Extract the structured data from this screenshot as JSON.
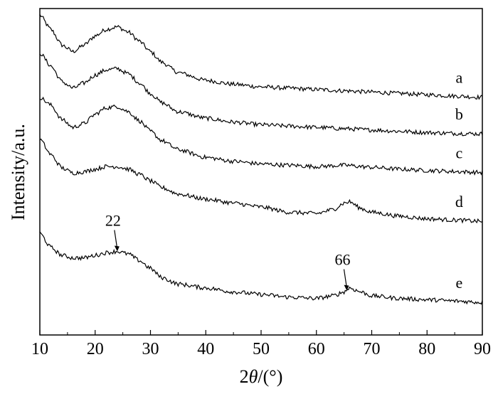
{
  "chart_data": {
    "type": "line",
    "title": "",
    "xlabel": {
      "prefix": "2",
      "symbol": "θ",
      "suffix": "/(°)"
    },
    "ylabel": "Intensity/a.u.",
    "xlim": [
      10,
      90
    ],
    "xticks": [
      10,
      20,
      30,
      40,
      50,
      60,
      70,
      80,
      90
    ],
    "yticks": [],
    "grid": false,
    "legend": "none",
    "line_color": "#000000",
    "series": [
      {
        "name": "a",
        "points": [
          [
            10,
            7.75
          ],
          [
            12,
            7.2
          ],
          [
            14,
            6.6
          ],
          [
            16,
            6.35
          ],
          [
            18,
            6.6
          ],
          [
            20,
            6.95
          ],
          [
            22,
            7.2
          ],
          [
            24,
            7.3
          ],
          [
            26,
            7.1
          ],
          [
            28,
            6.75
          ],
          [
            30,
            6.35
          ],
          [
            32,
            5.95
          ],
          [
            35,
            5.55
          ],
          [
            40,
            5.25
          ],
          [
            45,
            5.1
          ],
          [
            50,
            5.0
          ],
          [
            55,
            4.95
          ],
          [
            60,
            4.9
          ],
          [
            65,
            4.85
          ],
          [
            70,
            4.8
          ],
          [
            75,
            4.75
          ],
          [
            80,
            4.7
          ],
          [
            85,
            4.65
          ],
          [
            90,
            4.6
          ]
        ]
      },
      {
        "name": "b",
        "points": [
          [
            10,
            6.3
          ],
          [
            12,
            5.8
          ],
          [
            14,
            5.2
          ],
          [
            16,
            4.95
          ],
          [
            18,
            5.15
          ],
          [
            20,
            5.45
          ],
          [
            22,
            5.65
          ],
          [
            24,
            5.7
          ],
          [
            26,
            5.5
          ],
          [
            28,
            5.15
          ],
          [
            30,
            4.75
          ],
          [
            32,
            4.4
          ],
          [
            35,
            4.05
          ],
          [
            40,
            3.8
          ],
          [
            45,
            3.65
          ],
          [
            50,
            3.55
          ],
          [
            55,
            3.5
          ],
          [
            60,
            3.45
          ],
          [
            65,
            3.4
          ],
          [
            70,
            3.35
          ],
          [
            75,
            3.3
          ],
          [
            80,
            3.25
          ],
          [
            85,
            3.22
          ],
          [
            90,
            3.2
          ]
        ]
      },
      {
        "name": "c",
        "points": [
          [
            10,
            4.6
          ],
          [
            12,
            4.3
          ],
          [
            14,
            3.75
          ],
          [
            16,
            3.45
          ],
          [
            18,
            3.6
          ],
          [
            20,
            3.95
          ],
          [
            22,
            4.2
          ],
          [
            24,
            4.25
          ],
          [
            26,
            4.05
          ],
          [
            28,
            3.7
          ],
          [
            30,
            3.3
          ],
          [
            32,
            2.95
          ],
          [
            35,
            2.6
          ],
          [
            40,
            2.3
          ],
          [
            45,
            2.15
          ],
          [
            50,
            2.05
          ],
          [
            55,
            2.0
          ],
          [
            60,
            1.95
          ],
          [
            65,
            2.0
          ],
          [
            70,
            1.92
          ],
          [
            75,
            1.85
          ],
          [
            80,
            1.8
          ],
          [
            85,
            1.76
          ],
          [
            90,
            1.72
          ]
        ]
      },
      {
        "name": "d",
        "points": [
          [
            10,
            3.0
          ],
          [
            12,
            2.4
          ],
          [
            14,
            1.9
          ],
          [
            16,
            1.7
          ],
          [
            18,
            1.75
          ],
          [
            20,
            1.85
          ],
          [
            22,
            1.95
          ],
          [
            24,
            1.95
          ],
          [
            26,
            1.85
          ],
          [
            28,
            1.65
          ],
          [
            30,
            1.4
          ],
          [
            32,
            1.15
          ],
          [
            35,
            0.9
          ],
          [
            40,
            0.7
          ],
          [
            45,
            0.55
          ],
          [
            50,
            0.4
          ],
          [
            55,
            0.2
          ],
          [
            60,
            0.15
          ],
          [
            63,
            0.3
          ],
          [
            65,
            0.55
          ],
          [
            66,
            0.6
          ],
          [
            68,
            0.35
          ],
          [
            70,
            0.2
          ],
          [
            75,
            0.05
          ],
          [
            80,
            -0.05
          ],
          [
            85,
            -0.1
          ],
          [
            90,
            -0.15
          ]
        ]
      },
      {
        "name": "e",
        "points": [
          [
            10,
            -0.6
          ],
          [
            12,
            -1.15
          ],
          [
            14,
            -1.45
          ],
          [
            16,
            -1.55
          ],
          [
            18,
            -1.55
          ],
          [
            20,
            -1.45
          ],
          [
            22,
            -1.35
          ],
          [
            24,
            -1.3
          ],
          [
            26,
            -1.4
          ],
          [
            28,
            -1.65
          ],
          [
            30,
            -1.95
          ],
          [
            32,
            -2.3
          ],
          [
            35,
            -2.55
          ],
          [
            40,
            -2.7
          ],
          [
            45,
            -2.85
          ],
          [
            50,
            -2.95
          ],
          [
            55,
            -3.05
          ],
          [
            60,
            -3.1
          ],
          [
            63,
            -3.0
          ],
          [
            65,
            -2.85
          ],
          [
            66,
            -2.7
          ],
          [
            68,
            -2.85
          ],
          [
            70,
            -3.0
          ],
          [
            75,
            -3.1
          ],
          [
            80,
            -3.15
          ],
          [
            85,
            -3.2
          ],
          [
            90,
            -3.25
          ]
        ]
      }
    ],
    "ylim": [
      -4.5,
      8.0
    ],
    "annotations": [
      {
        "text": "22",
        "x": 24,
        "y": -1.3
      },
      {
        "text": "66",
        "x": 65.5,
        "y": -2.8
      }
    ]
  }
}
